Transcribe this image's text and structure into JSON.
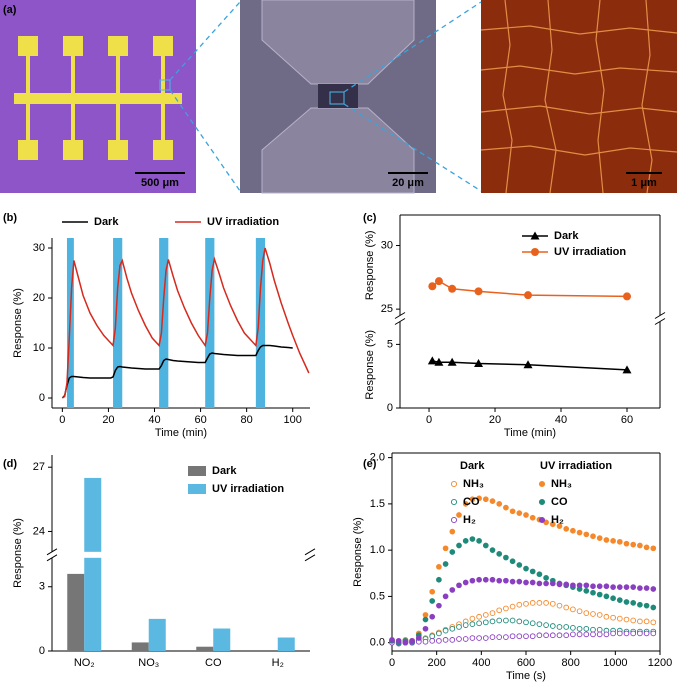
{
  "figure": {
    "panel_a": {
      "label": "(a)",
      "scale_bars": [
        "500 μm",
        "20 μm",
        "1 μm"
      ]
    }
  },
  "chart_data": [
    {
      "type": "line",
      "label": "(b)",
      "xlabel": "Time (min)",
      "ylabel": "Response (%)",
      "xlim": [
        -4.5,
        107.5
      ],
      "xticks": [
        0,
        20,
        40,
        60,
        80,
        100
      ],
      "ylim": [
        -2,
        32
      ],
      "yticks": [
        0,
        10,
        20,
        30
      ],
      "legend": "top",
      "shaded_x": [
        [
          2,
          5
        ],
        [
          22,
          26
        ],
        [
          42,
          46
        ],
        [
          62,
          66
        ],
        [
          84,
          88
        ]
      ],
      "shaded_color": "#4fb3e0",
      "x": [
        0,
        1,
        2,
        3,
        4,
        5,
        7,
        9,
        12,
        15,
        18,
        21,
        22,
        23,
        24,
        25,
        26,
        28,
        30,
        33,
        36,
        39,
        42,
        43,
        44,
        45,
        46,
        48,
        50,
        53,
        56,
        59,
        62,
        63,
        64,
        65,
        66,
        68,
        70,
        73,
        76,
        79,
        82,
        84,
        85,
        86,
        87,
        88,
        90,
        92,
        95,
        98,
        100,
        103,
        107
      ],
      "series": [
        {
          "name": "Dark",
          "color": "#000000",
          "values": [
            0,
            0.5,
            2.5,
            4,
            4.3,
            4.3,
            4.2,
            4.1,
            4,
            4,
            4,
            4,
            4.2,
            5.5,
            6.2,
            6.3,
            6.2,
            6.1,
            6,
            5.9,
            5.8,
            5.8,
            5.8,
            6.5,
            7.5,
            7.8,
            7.7,
            7.5,
            7.4,
            7.3,
            7.2,
            7.1,
            7.1,
            8,
            8.8,
            9,
            8.9,
            8.8,
            8.7,
            8.6,
            8.5,
            8.5,
            8.5,
            8.5,
            9.5,
            10.2,
            10.5,
            10.5,
            10.5,
            10.4,
            10.2,
            10.1,
            10,
            null,
            null
          ]
        },
        {
          "name": "UV irradiation",
          "color": "#d62a1e",
          "values": [
            0,
            0.3,
            3,
            12,
            22,
            27.5,
            24,
            20.5,
            17,
            14.5,
            12.5,
            11,
            10.5,
            14,
            22,
            26.5,
            27.5,
            24,
            21,
            17.5,
            14.5,
            12,
            10.5,
            13,
            20,
            25.5,
            27.7,
            24.5,
            21.5,
            18,
            15,
            12.5,
            10.5,
            13,
            20,
            25.5,
            27.8,
            25,
            22,
            18.5,
            15.5,
            13,
            11.5,
            10.5,
            14,
            22,
            27.5,
            30,
            27,
            23.5,
            19,
            15,
            12.5,
            9,
            5
          ]
        }
      ]
    },
    {
      "type": "line",
      "label": "(c)",
      "xlabel": "Time (min)",
      "ylabel": "Response (%)",
      "xlim": [
        -8.8,
        70
      ],
      "xticks": [
        0,
        20,
        40,
        60
      ],
      "y_segments": [
        {
          "ylim": [
            0,
            6.8
          ],
          "yticks": [
            0,
            5
          ]
        },
        {
          "ylim": [
            24.5,
            32.4
          ],
          "yticks": [
            25,
            30
          ]
        }
      ],
      "legend": "upper center",
      "x": [
        1,
        3,
        7,
        15,
        30,
        60
      ],
      "series": [
        {
          "name": "Dark",
          "color": "#000000",
          "marker": "triangle",
          "values": [
            3.7,
            3.6,
            3.6,
            3.5,
            3.4,
            3.0
          ]
        },
        {
          "name": "UV irradiation",
          "color": "#e8621e",
          "marker": "circle",
          "values": [
            26.8,
            27.2,
            26.6,
            26.4,
            26.1,
            26.0
          ]
        }
      ]
    },
    {
      "type": "bar",
      "label": "(d)",
      "ylabel": "Response (%)",
      "categories": [
        "NO₂",
        "NO₃",
        "CO",
        "H₂"
      ],
      "y_segments": [
        {
          "ylim": [
            0,
            4.35
          ],
          "yticks": [
            0,
            3
          ]
        },
        {
          "ylim": [
            23.05,
            27.57
          ],
          "yticks": [
            24,
            27
          ]
        }
      ],
      "legend": "upper right",
      "series": [
        {
          "name": "Dark",
          "color": "#767676",
          "values": [
            3.6,
            0.4,
            0.2,
            null
          ]
        },
        {
          "name": "UV irradiation",
          "color": "#5bb8e0",
          "values": [
            26.5,
            1.5,
            1.05,
            0.63
          ]
        }
      ]
    },
    {
      "type": "scatter",
      "label": "(e)",
      "xlabel": "Time (s)",
      "ylabel": "Response (%)",
      "xlim": [
        0,
        1200
      ],
      "xticks": [
        0,
        200,
        400,
        600,
        800,
        1000,
        1200
      ],
      "ylim": [
        -0.09,
        2.05
      ],
      "yticks": [
        {
          "value": 0,
          "label": "0.0"
        },
        0.5,
        {
          "value": 1,
          "label": "1.0"
        },
        1.5,
        {
          "value": 2,
          "label": "2.0"
        }
      ],
      "legend_titles": [
        "Dark",
        "UV irradiation"
      ],
      "x": [
        0,
        30,
        60,
        90,
        120,
        150,
        180,
        210,
        240,
        270,
        300,
        330,
        360,
        390,
        420,
        450,
        480,
        510,
        540,
        570,
        600,
        630,
        660,
        690,
        720,
        750,
        780,
        810,
        840,
        870,
        900,
        930,
        960,
        990,
        1020,
        1050,
        1080,
        1110,
        1140,
        1170
      ],
      "series": [
        {
          "name": "NH₃",
          "color": "#f5882a",
          "filled": false,
          "values": [
            0.02,
            0.01,
            0.02,
            0.01,
            0.03,
            0.05,
            0.08,
            0.11,
            0.14,
            0.17,
            0.2,
            0.23,
            0.26,
            0.28,
            0.3,
            0.32,
            0.35,
            0.37,
            0.39,
            0.41,
            0.42,
            0.43,
            0.43,
            0.43,
            0.42,
            0.4,
            0.38,
            0.36,
            0.34,
            0.32,
            0.31,
            0.3,
            0.28,
            0.27,
            0.26,
            0.25,
            0.24,
            0.23,
            0.23,
            0.22
          ]
        },
        {
          "name": "CO",
          "color": "#1f8a7a",
          "filled": false,
          "values": [
            0.01,
            0.0,
            0.01,
            0.0,
            0.02,
            0.04,
            0.07,
            0.1,
            0.13,
            0.15,
            0.17,
            0.19,
            0.2,
            0.21,
            0.22,
            0.23,
            0.24,
            0.24,
            0.24,
            0.23,
            0.22,
            0.21,
            0.2,
            0.19,
            0.18,
            0.17,
            0.17,
            0.16,
            0.15,
            0.15,
            0.14,
            0.14,
            0.13,
            0.13,
            0.13,
            0.12,
            0.12,
            0.12,
            0.12,
            0.12
          ]
        },
        {
          "name": "H₂",
          "color": "#8a3fc0",
          "filled": false,
          "values": [
            0.0,
            -0.01,
            0.0,
            0.0,
            0.01,
            0.01,
            0.02,
            0.02,
            0.03,
            0.03,
            0.04,
            0.04,
            0.05,
            0.05,
            0.05,
            0.06,
            0.06,
            0.06,
            0.07,
            0.07,
            0.07,
            0.07,
            0.08,
            0.08,
            0.08,
            0.08,
            0.08,
            0.09,
            0.09,
            0.09,
            0.09,
            0.09,
            0.09,
            0.1,
            0.1,
            0.1,
            0.1,
            0.1,
            0.1,
            0.1
          ]
        },
        {
          "name": "NH₃",
          "color": "#f5882a",
          "filled": true,
          "values": [
            0.02,
            0.01,
            0.03,
            0.02,
            0.1,
            0.3,
            0.55,
            0.82,
            1.02,
            1.2,
            1.38,
            1.5,
            1.55,
            1.56,
            1.55,
            1.53,
            1.5,
            1.46,
            1.42,
            1.4,
            1.38,
            1.35,
            1.33,
            1.3,
            1.28,
            1.26,
            1.23,
            1.21,
            1.19,
            1.17,
            1.15,
            1.13,
            1.11,
            1.1,
            1.09,
            1.07,
            1.06,
            1.05,
            1.03,
            1.02
          ]
        },
        {
          "name": "CO",
          "color": "#1f8a7a",
          "filled": true,
          "values": [
            0.02,
            0.0,
            0.02,
            0.01,
            0.08,
            0.25,
            0.45,
            0.68,
            0.85,
            0.98,
            1.05,
            1.1,
            1.12,
            1.1,
            1.05,
            1.0,
            0.96,
            0.92,
            0.88,
            0.84,
            0.8,
            0.77,
            0.74,
            0.7,
            0.67,
            0.64,
            0.62,
            0.6,
            0.58,
            0.56,
            0.54,
            0.52,
            0.5,
            0.48,
            0.46,
            0.44,
            0.43,
            0.41,
            0.4,
            0.38
          ]
        },
        {
          "name": "H₂",
          "color": "#8a3fc0",
          "filled": true,
          "values": [
            0.03,
            0.02,
            0.0,
            0.02,
            0.05,
            0.15,
            0.28,
            0.4,
            0.5,
            0.57,
            0.62,
            0.65,
            0.67,
            0.68,
            0.68,
            0.68,
            0.67,
            0.67,
            0.66,
            0.66,
            0.65,
            0.65,
            0.64,
            0.64,
            0.64,
            0.63,
            0.63,
            0.62,
            0.62,
            0.62,
            0.61,
            0.61,
            0.61,
            0.6,
            0.6,
            0.6,
            0.6,
            0.59,
            0.59,
            0.58
          ]
        }
      ]
    }
  ]
}
